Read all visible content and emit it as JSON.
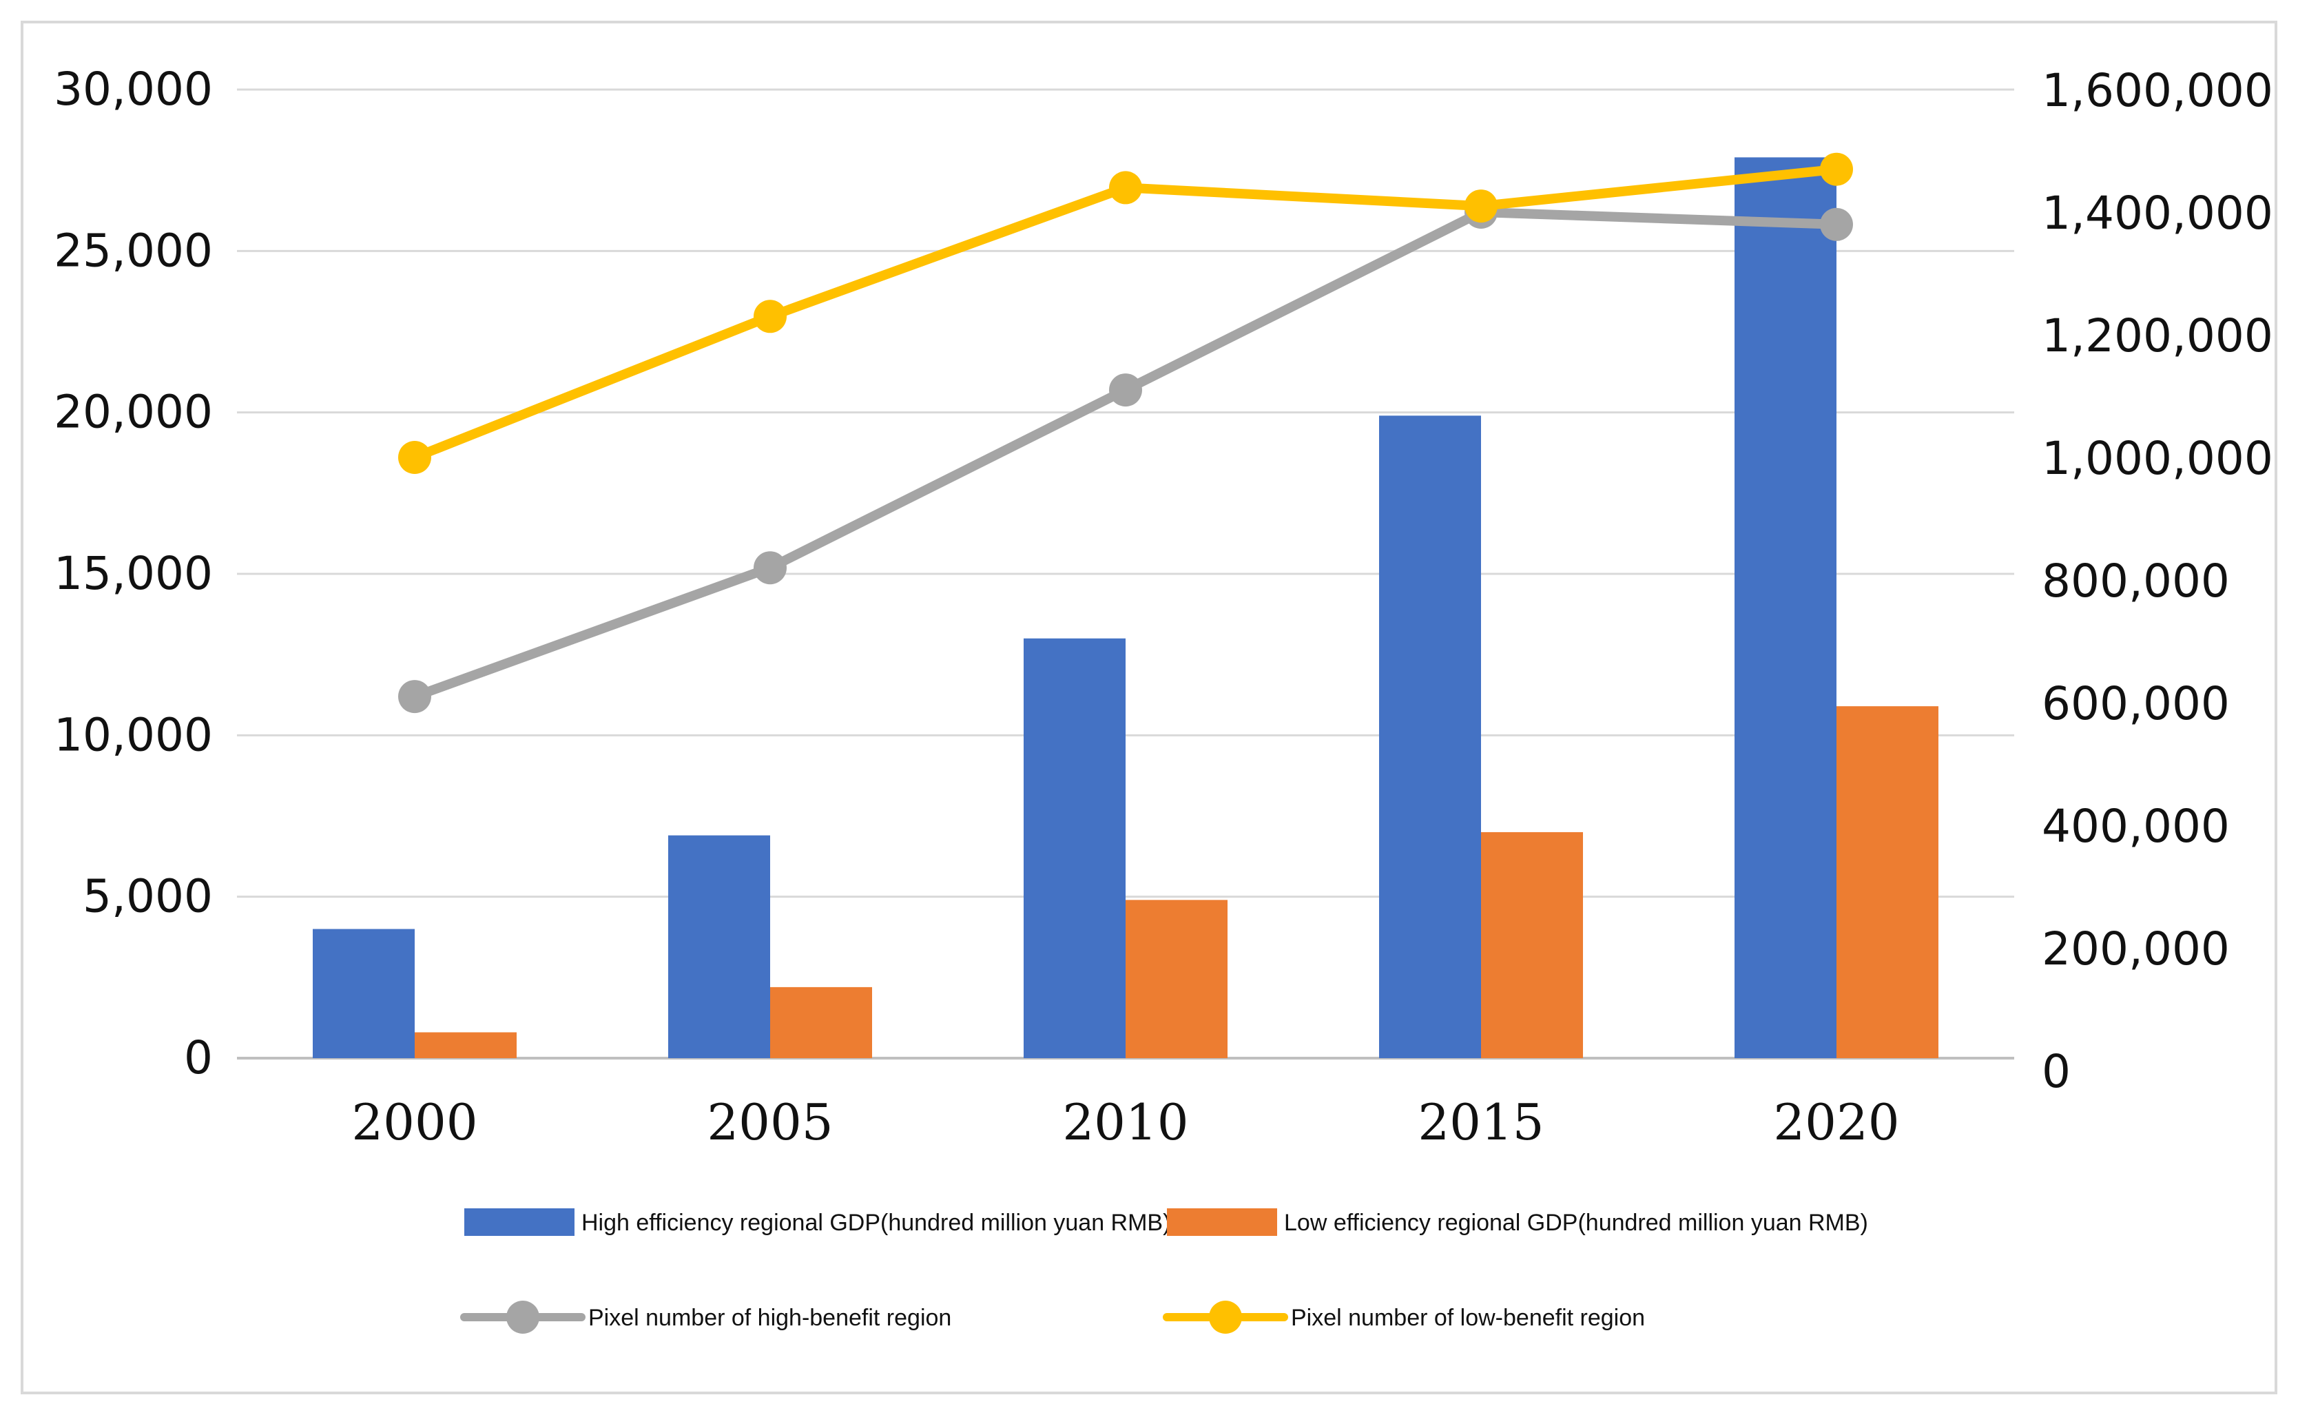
{
  "chart_data": {
    "type": "bar",
    "categories": [
      "2000",
      "2005",
      "2010",
      "2015",
      "2020"
    ],
    "series": [
      {
        "name": "High efficiency regional GDP(hundred million yuan RMB)",
        "kind": "bar",
        "axis": "left",
        "color": "#4472C4",
        "values": [
          4000,
          6900,
          13000,
          19900,
          27900
        ]
      },
      {
        "name": "Low efficiency regional GDP(hundred million yuan RMB)",
        "kind": "bar",
        "axis": "left",
        "color": "#ED7D31",
        "values": [
          800,
          2200,
          4900,
          7000,
          10900
        ]
      },
      {
        "name": "Pixel number of high-benefit region",
        "kind": "line",
        "axis": "right",
        "color": "#A5A5A5",
        "values": [
          610000,
          820000,
          1110000,
          1400000,
          1380000
        ]
      },
      {
        "name": "Pixel number of low-benefit region",
        "kind": "line",
        "axis": "right",
        "color": "#FFC000",
        "values": [
          1000000,
          1230000,
          1440000,
          1410000,
          1470000
        ]
      }
    ],
    "left_axis": {
      "ylim": [
        0,
        30000
      ],
      "ticks": [
        0,
        5000,
        10000,
        15000,
        20000,
        25000,
        30000
      ],
      "tick_labels": [
        "0",
        "5,000",
        "10,000",
        "15,000",
        "20,000",
        "25,000",
        "30,000"
      ]
    },
    "right_axis": {
      "ylim": [
        0,
        1600000
      ],
      "ticks": [
        0,
        200000,
        400000,
        600000,
        800000,
        1000000,
        1200000,
        1400000,
        1600000
      ],
      "tick_labels": [
        "0",
        "200,000",
        "400,000",
        "600,000",
        "800,000",
        "1,000,000",
        "1,200,000",
        "1,400,000",
        "1,600,000"
      ]
    },
    "grid": true,
    "legend": "bottom",
    "title": "",
    "xlabel": "",
    "ylabel": ""
  }
}
